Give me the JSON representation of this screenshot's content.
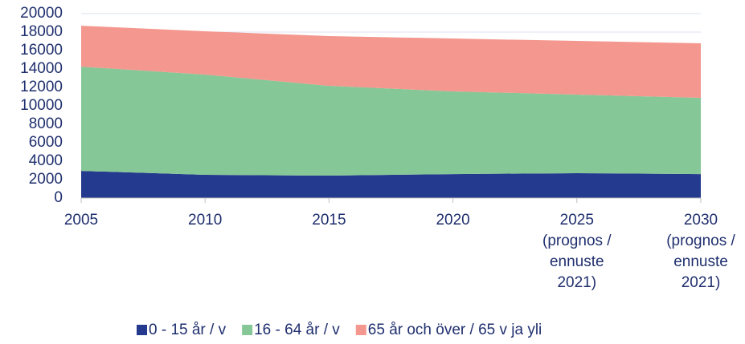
{
  "chart_data": {
    "type": "area",
    "stacked": true,
    "categories": [
      [
        "2005"
      ],
      [
        "2010"
      ],
      [
        "2015"
      ],
      [
        "2020"
      ],
      [
        "2025",
        "(prognos /",
        "ennuste",
        "2021)"
      ],
      [
        "2030",
        "(prognos /",
        "ennuste",
        "2021)"
      ]
    ],
    "series": [
      {
        "name": "0 - 15 år / v",
        "color": "#243a8e",
        "values": [
          2950,
          2520,
          2430,
          2600,
          2700,
          2600
        ]
      },
      {
        "name": "16 - 64 år / v",
        "color": "#86c797",
        "values": [
          11300,
          10870,
          9740,
          8970,
          8520,
          8270
        ]
      },
      {
        "name": "65 år och över / 65 v ja yli",
        "color": "#f4978e",
        "values": [
          4440,
          4700,
          5400,
          5730,
          5820,
          5910
        ]
      }
    ],
    "ylim": [
      0,
      20000
    ],
    "yticks": [
      0,
      2000,
      4000,
      6000,
      8000,
      10000,
      12000,
      14000,
      16000,
      18000,
      20000
    ],
    "grid": true,
    "legend": "bottom"
  }
}
